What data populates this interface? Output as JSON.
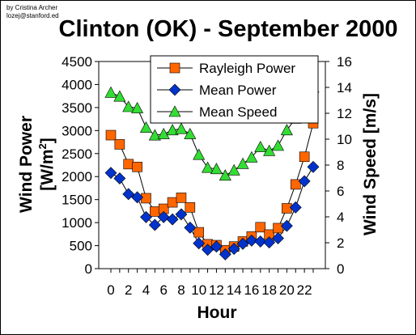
{
  "credit": {
    "line1": "by Cristina Archer",
    "line2": "lozej@stanford.ed"
  },
  "chart_data": {
    "type": "line",
    "title": "Clinton (OK) - September 2000",
    "xlabel": "Hour",
    "ylabel_left": "Wind Power [W/m²]",
    "ylabel_left_main": "Wind Power",
    "ylabel_left_unit": "[W/m",
    "ylabel_left_sup": "2",
    "ylabel_left_close": "]",
    "ylabel_right": "Wind Speed [m/s]",
    "x": [
      0,
      1,
      2,
      3,
      4,
      5,
      6,
      7,
      8,
      9,
      10,
      11,
      12,
      13,
      14,
      15,
      16,
      17,
      18,
      19,
      20,
      21,
      22,
      23
    ],
    "xticks": [
      "0",
      "2",
      "4",
      "6",
      "8",
      "10",
      "12",
      "14",
      "16",
      "18",
      "20",
      "22"
    ],
    "xlim": [
      0,
      23
    ],
    "ylim_left": [
      0,
      4500
    ],
    "yticks_left": [
      "0",
      "500",
      "1000",
      "1500",
      "2000",
      "2500",
      "3000",
      "3500",
      "4000",
      "4500"
    ],
    "ylim_right": [
      0,
      16
    ],
    "yticks_right": [
      "0",
      "2",
      "4",
      "6",
      "8",
      "10",
      "12",
      "14",
      "16"
    ],
    "legend_position": "top-right",
    "series": [
      {
        "name": "Rayleigh Power",
        "axis": "left",
        "color": "#ff6600",
        "marker": "square",
        "values": [
          2900,
          2700,
          2270,
          2210,
          1530,
          1240,
          1300,
          1440,
          1540,
          1330,
          790,
          530,
          510,
          400,
          480,
          590,
          700,
          900,
          740,
          880,
          1310,
          1830,
          2430,
          3160
        ]
      },
      {
        "name": "Mean Power",
        "axis": "left",
        "color": "#0033cc",
        "marker": "diamond",
        "values": [
          2080,
          1960,
          1620,
          1550,
          1120,
          950,
          1120,
          1070,
          1180,
          890,
          550,
          410,
          480,
          310,
          430,
          540,
          610,
          590,
          570,
          660,
          930,
          1330,
          1900,
          2210
        ]
      },
      {
        "name": "Mean Speed",
        "axis": "right",
        "color": "#33dd33",
        "marker": "triangle",
        "values": [
          13.6,
          13.3,
          12.5,
          12.4,
          10.9,
          10.3,
          10.4,
          10.7,
          10.8,
          10.4,
          8.8,
          7.8,
          7.7,
          7.2,
          7.6,
          8.1,
          8.6,
          9.4,
          9.1,
          9.5,
          10.7,
          11.6,
          12.9,
          14.0
        ]
      }
    ]
  }
}
